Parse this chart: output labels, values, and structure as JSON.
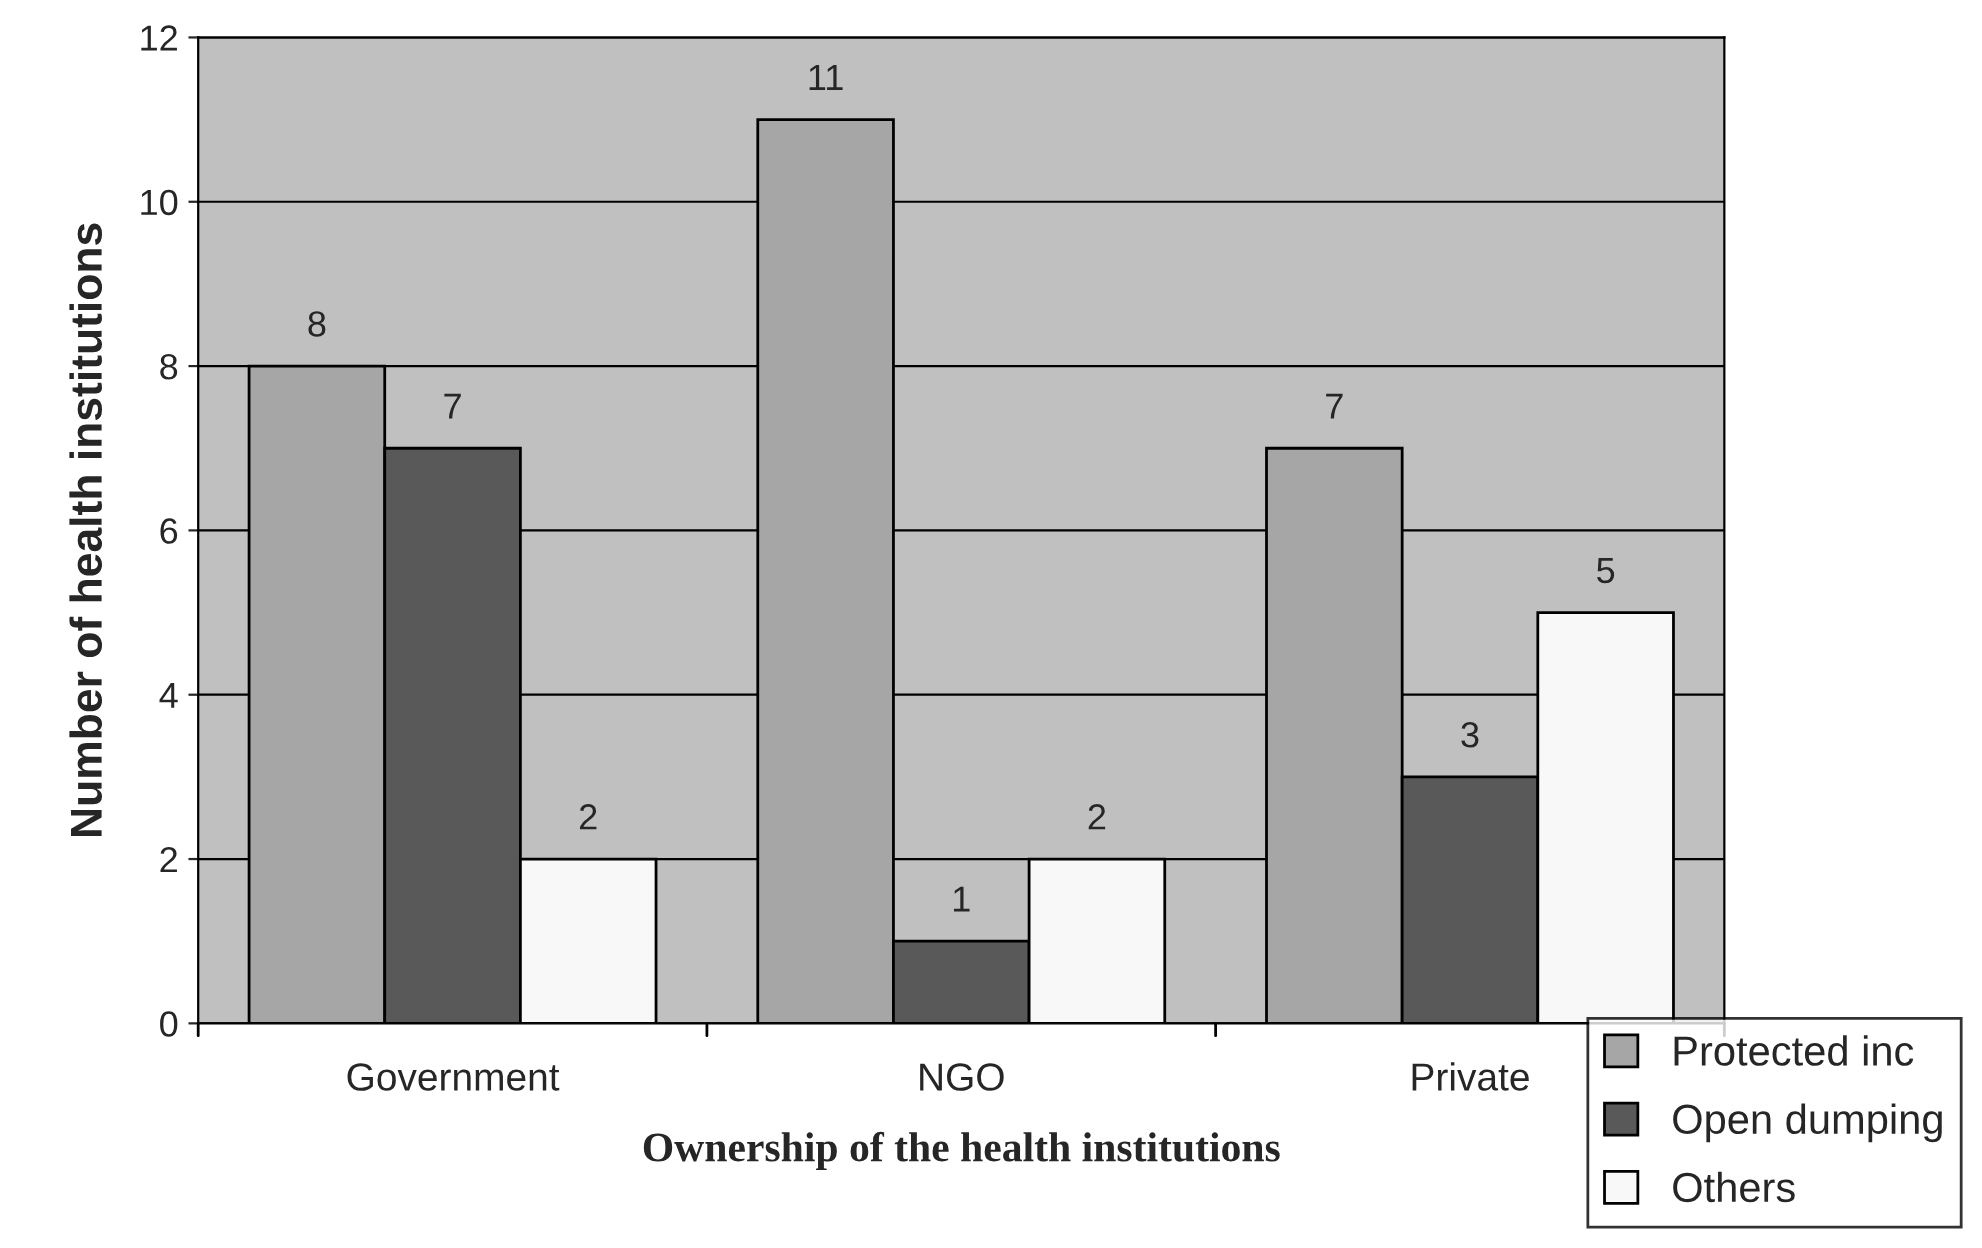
{
  "chart_data": {
    "type": "bar",
    "xlabel": "Ownership of the health institutions",
    "ylabel": "Number of health institutions",
    "categories": [
      "Government",
      "NGO",
      "Private"
    ],
    "series": [
      {
        "name": "Protected inc",
        "color": "#a6a6a6",
        "values": [
          8,
          11,
          7
        ]
      },
      {
        "name": "Open dumping",
        "color": "#595959",
        "values": [
          7,
          1,
          3
        ]
      },
      {
        "name": "Others",
        "color": "#f8f8f8",
        "values": [
          2,
          2,
          5
        ]
      }
    ],
    "ylim": [
      0,
      12
    ],
    "yticks": [
      0,
      2,
      4,
      6,
      8,
      10,
      12
    ],
    "grid": "y",
    "legend": "bottom right",
    "data_labels": true
  }
}
